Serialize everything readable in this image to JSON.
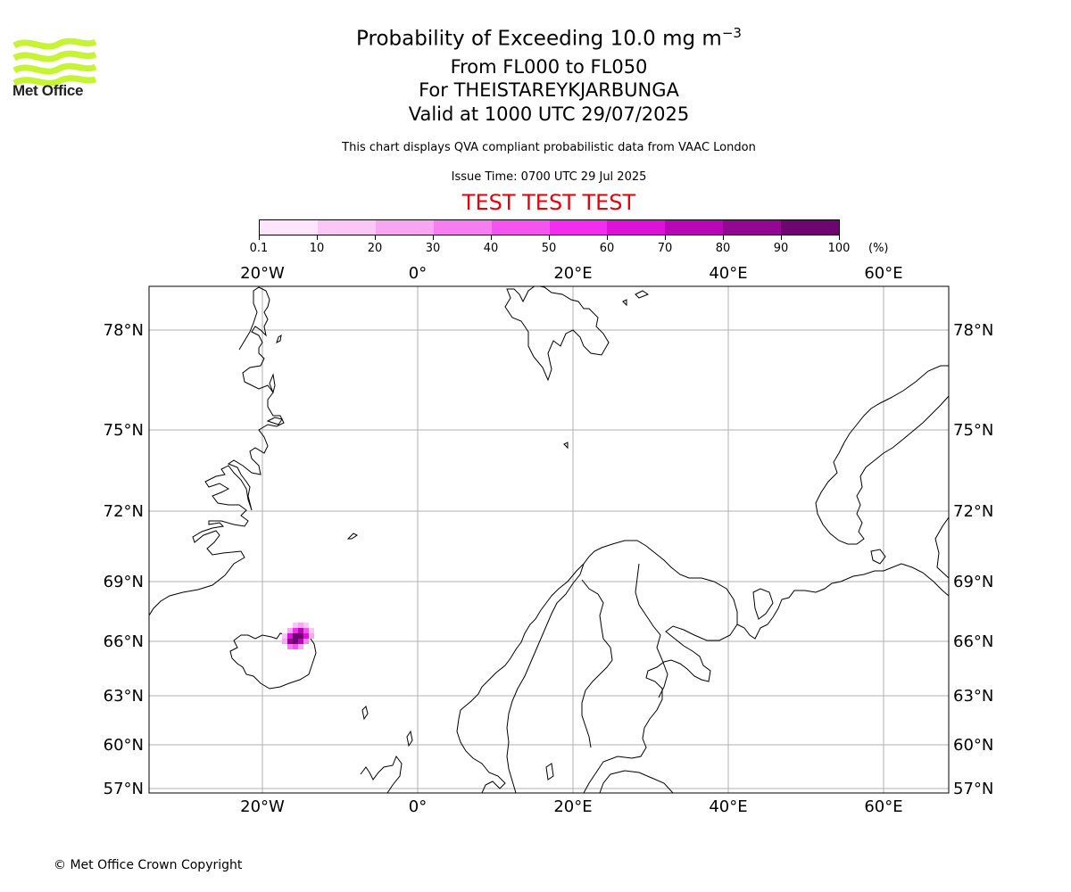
{
  "header": {
    "title_main": "Probability of Exceeding 10.0 mg m",
    "title_sup": "−3",
    "level_range": "From FL000 to FL050",
    "volcano": "For THEISTAREYKJARBUNGA",
    "valid_time": "Valid at 1000 UTC 29/07/2025",
    "description": "This chart displays QVA compliant probabilistic data from VAAC London",
    "issue_time": "Issue Time: 0700 UTC 29 Jul 2025",
    "test_banner": "TEST TEST TEST"
  },
  "logo": {
    "text": "Met Office",
    "color": "#c6f432"
  },
  "colorbar": {
    "ticks": [
      "0.1",
      "10",
      "20",
      "30",
      "40",
      "50",
      "60",
      "70",
      "80",
      "90",
      "100"
    ],
    "unit": "(%)",
    "colors": [
      "#ffe5fb",
      "#fbc8f6",
      "#f8a6f2",
      "#f67ef0",
      "#f455ef",
      "#f22def",
      "#dc12d9",
      "#b807b6",
      "#940793",
      "#6e0570"
    ]
  },
  "map": {
    "lon_labels": [
      "20°W",
      "0°",
      "20°E",
      "40°E",
      "60°E"
    ],
    "lat_labels": [
      "78°N",
      "75°N",
      "72°N",
      "69°N",
      "66°N",
      "63°N",
      "60°N",
      "57°N"
    ],
    "gridline_color": "#b0b0b0"
  },
  "footer": {
    "copyright": "© Met Office Crown Copyright"
  }
}
